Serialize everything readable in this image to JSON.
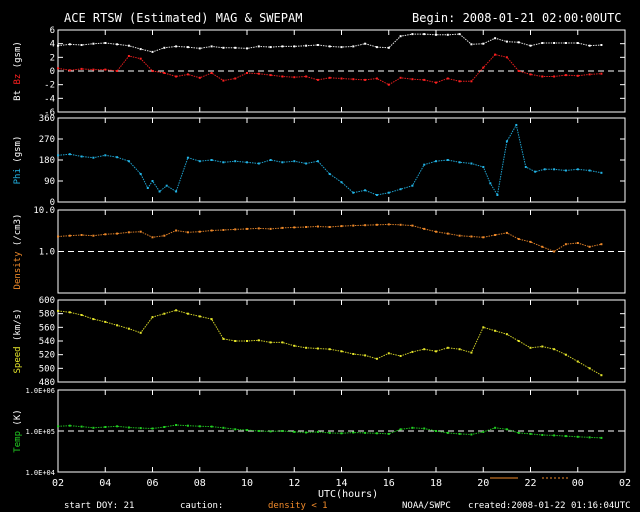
{
  "header": {
    "title": "ACE RTSW (Estimated) MAG & SWEPAM",
    "begin": "Begin: 2008-01-21 02:00:00UTC"
  },
  "footer": {
    "start_doy": "start DOY:  21",
    "caution_label": "caution:",
    "caution_note": "density < 1",
    "source": "NOAA/SWPC",
    "created": "created:2008-01-22 01:16:04UTC",
    "xlabel": "UTC(hours)"
  },
  "colors": {
    "bt": "#ffffff",
    "bz": "#ff2020",
    "phi": "#22b4e6",
    "density": "#f08a2a",
    "speed": "#e6e62a",
    "temp": "#22d022",
    "axis": "#ffffff",
    "caution": "#f08a2a"
  },
  "chart_data": [
    {
      "type": "scatter",
      "panel": "mag",
      "ylabel_parts": [
        {
          "text": "Bt",
          "color": "#ffffff"
        },
        {
          "text": " ",
          "color": "#ffffff"
        },
        {
          "text": "Bz",
          "color": "#ff2020"
        },
        {
          "text": " (gsm)",
          "color": "#ffffff"
        }
      ],
      "ylim": [
        -6,
        6
      ],
      "yticks": [
        {
          "v": 6,
          "l": "6"
        },
        {
          "v": 4,
          "l": "4"
        },
        {
          "v": 2,
          "l": "2"
        },
        {
          "v": 0,
          "l": "0"
        },
        {
          "v": -2,
          "l": "-2"
        },
        {
          "v": -4,
          "l": "-4"
        },
        {
          "v": -6,
          "l": "-6"
        }
      ],
      "reference_line": 0,
      "series": [
        {
          "key": "bt",
          "color": "#ffffff",
          "x": [
            0,
            0.5,
            1,
            1.5,
            2,
            2.5,
            3,
            3.5,
            4,
            4.5,
            5,
            5.5,
            6,
            6.5,
            7,
            7.5,
            8,
            8.5,
            9,
            9.5,
            10,
            10.5,
            11,
            11.5,
            12,
            12.5,
            13,
            13.5,
            14,
            14.5,
            15,
            15.5,
            16,
            16.5,
            17,
            17.5,
            18,
            18.5,
            19,
            19.5,
            20,
            20.5,
            21,
            21.5,
            22,
            22.5,
            23
          ],
          "y": [
            3.7,
            3.9,
            3.8,
            4.0,
            4.1,
            3.9,
            3.7,
            3.2,
            2.8,
            3.4,
            3.6,
            3.5,
            3.3,
            3.6,
            3.4,
            3.4,
            3.3,
            3.6,
            3.5,
            3.6,
            3.6,
            3.7,
            3.8,
            3.6,
            3.5,
            3.6,
            4.0,
            3.5,
            3.4,
            5.1,
            5.4,
            5.4,
            5.3,
            5.3,
            5.4,
            3.9,
            4.0,
            4.8,
            4.3,
            4.2,
            3.7,
            4.1,
            4.1,
            4.1,
            4.1,
            3.7,
            3.8
          ]
        },
        {
          "key": "bz",
          "color": "#ff2020",
          "x": [
            0,
            0.5,
            1,
            1.5,
            2,
            2.5,
            3,
            3.5,
            4,
            4.5,
            5,
            5.5,
            6,
            6.5,
            7,
            7.5,
            8,
            8.5,
            9,
            9.5,
            10,
            10.5,
            11,
            11.5,
            12,
            12.5,
            13,
            13.5,
            14,
            14.5,
            15,
            15.5,
            16,
            16.5,
            17,
            17.5,
            18,
            18.5,
            19,
            19.5,
            20,
            20.5,
            21,
            21.5,
            22,
            22.5,
            23
          ],
          "y": [
            0.4,
            0.1,
            0.3,
            0.2,
            0.2,
            0.0,
            2.2,
            1.8,
            0.0,
            -0.3,
            -0.8,
            -0.5,
            -1.0,
            -0.3,
            -1.4,
            -1.1,
            -0.3,
            -0.4,
            -0.6,
            -0.8,
            -0.9,
            -0.8,
            -1.3,
            -1.0,
            -1.1,
            -1.2,
            -1.3,
            -1.1,
            -2.0,
            -1.0,
            -1.2,
            -1.3,
            -1.7,
            -1.1,
            -1.5,
            -1.5,
            0.5,
            2.4,
            2.0,
            0.0,
            -0.5,
            -0.8,
            -0.8,
            -0.6,
            -0.7,
            -0.5,
            -0.4
          ]
        }
      ]
    },
    {
      "type": "scatter",
      "panel": "phi",
      "ylabel_parts": [
        {
          "text": "Phi",
          "color": "#22b4e6"
        },
        {
          "text": " (gsm)",
          "color": "#ffffff"
        }
      ],
      "ylim": [
        0,
        360
      ],
      "yticks": [
        {
          "v": 360,
          "l": "360"
        },
        {
          "v": 270,
          "l": "270"
        },
        {
          "v": 180,
          "l": "180"
        },
        {
          "v": 90,
          "l": "90"
        },
        {
          "v": 0,
          "l": "0"
        }
      ],
      "series": [
        {
          "key": "phi",
          "color": "#22b4e6",
          "x": [
            0,
            0.5,
            1,
            1.5,
            2,
            2.5,
            3,
            3.5,
            3.8,
            4.0,
            4.3,
            4.6,
            5,
            5.5,
            6,
            6.5,
            7,
            7.5,
            8,
            8.5,
            9,
            9.5,
            10,
            10.5,
            11,
            11.5,
            12,
            12.5,
            13,
            13.5,
            14,
            14.5,
            15,
            15.5,
            16,
            16.5,
            17,
            17.5,
            18,
            18.3,
            18.6,
            19,
            19.4,
            19.8,
            20.2,
            20.6,
            21,
            21.5,
            22,
            22.5,
            23
          ],
          "y": [
            200,
            205,
            195,
            190,
            200,
            192,
            175,
            120,
            60,
            90,
            45,
            70,
            45,
            190,
            175,
            180,
            170,
            175,
            170,
            165,
            180,
            170,
            175,
            165,
            175,
            120,
            85,
            40,
            50,
            30,
            40,
            55,
            70,
            160,
            175,
            180,
            170,
            165,
            150,
            80,
            30,
            260,
            330,
            150,
            130,
            140,
            140,
            135,
            140,
            135,
            125
          ]
        }
      ]
    },
    {
      "type": "scatter",
      "panel": "density",
      "ylabel_parts": [
        {
          "text": "Density",
          "color": "#f08a2a"
        },
        {
          "text": " (/cm3)",
          "color": "#ffffff"
        }
      ],
      "yscale": "log",
      "ylim": [
        0.1,
        10
      ],
      "yticks": [
        {
          "v": 10,
          "l": "10.0"
        },
        {
          "v": 1,
          "l": "1.0"
        }
      ],
      "reference_line": 1,
      "series": [
        {
          "key": "density",
          "color": "#f08a2a",
          "x": [
            0,
            0.5,
            1,
            1.5,
            2,
            2.5,
            3,
            3.5,
            4,
            4.5,
            5,
            5.5,
            6,
            6.5,
            7,
            7.5,
            8,
            8.5,
            9,
            9.5,
            10,
            10.5,
            11,
            11.5,
            12,
            12.5,
            13,
            13.5,
            14,
            14.5,
            15,
            15.5,
            16,
            16.5,
            17,
            17.5,
            18,
            18.5,
            19,
            19.5,
            20,
            20.5,
            21,
            21.5,
            22,
            22.5,
            23
          ],
          "y": [
            2.3,
            2.4,
            2.5,
            2.4,
            2.6,
            2.7,
            2.9,
            3.0,
            2.2,
            2.4,
            3.2,
            2.9,
            3.0,
            3.2,
            3.3,
            3.4,
            3.5,
            3.6,
            3.5,
            3.7,
            3.8,
            3.9,
            4.0,
            3.9,
            4.1,
            4.2,
            4.3,
            4.4,
            4.5,
            4.4,
            4.2,
            3.5,
            3.0,
            2.7,
            2.4,
            2.3,
            2.2,
            2.5,
            2.8,
            2.0,
            1.7,
            1.3,
            1.0,
            1.5,
            1.6,
            1.3,
            1.5
          ]
        }
      ]
    },
    {
      "type": "scatter",
      "panel": "speed",
      "ylabel_parts": [
        {
          "text": "Speed",
          "color": "#e6e62a"
        },
        {
          "text": " (km/s)",
          "color": "#ffffff"
        }
      ],
      "ylim": [
        480,
        600
      ],
      "yticks": [
        {
          "v": 600,
          "l": "600"
        },
        {
          "v": 580,
          "l": "580"
        },
        {
          "v": 560,
          "l": "560"
        },
        {
          "v": 540,
          "l": "540"
        },
        {
          "v": 520,
          "l": "520"
        },
        {
          "v": 500,
          "l": "500"
        },
        {
          "v": 480,
          "l": "480"
        }
      ],
      "series": [
        {
          "key": "speed",
          "color": "#e6e62a",
          "x": [
            0,
            0.5,
            1,
            1.5,
            2,
            2.5,
            3,
            3.5,
            4,
            4.5,
            5,
            5.5,
            6,
            6.5,
            7,
            7.5,
            8,
            8.5,
            9,
            9.5,
            10,
            10.5,
            11,
            11.5,
            12,
            12.5,
            13,
            13.5,
            14,
            14.5,
            15,
            15.5,
            16,
            16.5,
            17,
            17.5,
            18,
            18.5,
            19,
            19.5,
            20,
            20.5,
            21,
            21.5,
            22,
            22.5,
            23
          ],
          "y": [
            584,
            582,
            578,
            572,
            568,
            563,
            558,
            552,
            575,
            580,
            585,
            580,
            576,
            572,
            543,
            540,
            540,
            541,
            538,
            538,
            533,
            530,
            529,
            528,
            525,
            521,
            519,
            514,
            522,
            518,
            524,
            528,
            525,
            530,
            528,
            523,
            560,
            555,
            550,
            540,
            530,
            532,
            528,
            520,
            510,
            500,
            490
          ]
        }
      ]
    },
    {
      "type": "scatter",
      "panel": "temp",
      "ylabel_parts": [
        {
          "text": "Temp",
          "color": "#22d022"
        },
        {
          "text": " (K)",
          "color": "#ffffff"
        }
      ],
      "yscale": "log",
      "ylim": [
        10000,
        1000000
      ],
      "yticks": [
        {
          "v": 1000000,
          "l": "1.0E+06"
        },
        {
          "v": 100000,
          "l": "1.0E+05"
        },
        {
          "v": 10000,
          "l": "1.0E+04"
        }
      ],
      "reference_line": 100000,
      "series": [
        {
          "key": "temp",
          "color": "#22d022",
          "x": [
            0,
            0.5,
            1,
            1.5,
            2,
            2.5,
            3,
            3.5,
            4,
            4.5,
            5,
            5.5,
            6,
            6.5,
            7,
            7.5,
            8,
            8.5,
            9,
            9.5,
            10,
            10.5,
            11,
            11.5,
            12,
            12.5,
            13,
            13.5,
            14,
            14.5,
            15,
            15.5,
            16,
            16.5,
            17,
            17.5,
            18,
            18.5,
            19,
            19.5,
            20,
            20.5,
            21,
            21.5,
            22,
            22.5,
            23
          ],
          "y": [
            130000,
            135000,
            128000,
            120000,
            125000,
            130000,
            122000,
            118000,
            115000,
            125000,
            140000,
            135000,
            130000,
            128000,
            120000,
            110000,
            105000,
            100000,
            98000,
            100000,
            95000,
            92000,
            95000,
            90000,
            88000,
            92000,
            90000,
            88000,
            85000,
            110000,
            120000,
            115000,
            100000,
            90000,
            85000,
            82000,
            95000,
            120000,
            110000,
            90000,
            85000,
            80000,
            78000,
            75000,
            72000,
            70000,
            68000
          ]
        }
      ]
    }
  ],
  "x_axis": {
    "xlim": [
      0,
      24
    ],
    "ticks": [
      {
        "v": 0,
        "l": "02"
      },
      {
        "v": 2,
        "l": "04"
      },
      {
        "v": 4,
        "l": "06"
      },
      {
        "v": 6,
        "l": "08"
      },
      {
        "v": 8,
        "l": "10"
      },
      {
        "v": 10,
        "l": "12"
      },
      {
        "v": 12,
        "l": "14"
      },
      {
        "v": 14,
        "l": "16"
      },
      {
        "v": 16,
        "l": "18"
      },
      {
        "v": 18,
        "l": "20"
      },
      {
        "v": 20,
        "l": "22"
      },
      {
        "v": 22,
        "l": "00"
      },
      {
        "v": 24,
        "l": "02"
      }
    ]
  }
}
